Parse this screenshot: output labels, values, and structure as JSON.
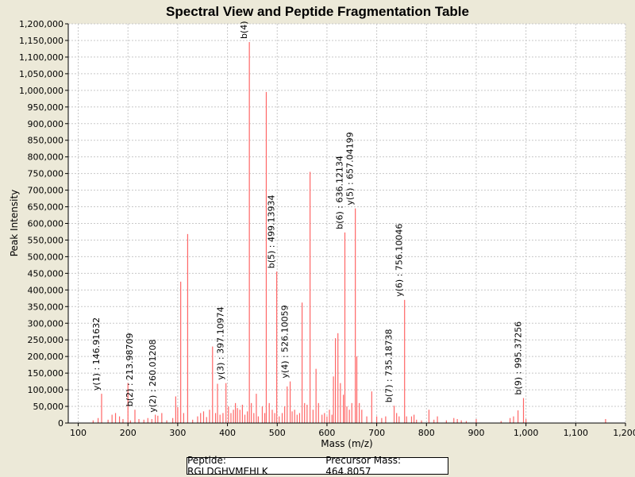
{
  "chart_data": {
    "type": "bar",
    "title": "Spectral View and Peptide Fragmentation Table",
    "xlabel": "Mass (m/z)",
    "ylabel": "Peak Intensity",
    "xlim": [
      80,
      1200
    ],
    "ylim": [
      0,
      1200000
    ],
    "x_ticks": [
      100,
      200,
      300,
      400,
      500,
      600,
      700,
      800,
      900,
      1000,
      1100,
      1200
    ],
    "x_tick_labels": [
      "100",
      "200",
      "300",
      "400",
      "500",
      "600",
      "700",
      "800",
      "900",
      "1,000",
      "1,100",
      "1,200"
    ],
    "y_ticks": [
      0,
      50000,
      100000,
      150000,
      200000,
      250000,
      300000,
      350000,
      400000,
      450000,
      500000,
      550000,
      600000,
      650000,
      700000,
      750000,
      800000,
      850000,
      900000,
      950000,
      1000000,
      1050000,
      1100000,
      1150000,
      1200000
    ],
    "y_tick_labels": [
      "0",
      "50,000",
      "100,000",
      "150,000",
      "200,000",
      "250,000",
      "300,000",
      "350,000",
      "400,000",
      "450,000",
      "500,000",
      "550,000",
      "600,000",
      "650,000",
      "700,000",
      "750,000",
      "800,000",
      "850,000",
      "900,000",
      "950,000",
      "1,000,000",
      "1,050,000",
      "1,100,000",
      "1,150,000",
      "1,200,000"
    ],
    "grid": true,
    "series": [
      {
        "name": "peaks",
        "color": "#ff6666",
        "points": [
          [
            130,
            8000
          ],
          [
            140,
            15000
          ],
          [
            147,
            88000
          ],
          [
            160,
            10000
          ],
          [
            168,
            25000
          ],
          [
            175,
            30000
          ],
          [
            183,
            20000
          ],
          [
            190,
            12000
          ],
          [
            200,
            120000
          ],
          [
            205,
            8000
          ],
          [
            214,
            40000
          ],
          [
            222,
            12000
          ],
          [
            232,
            10000
          ],
          [
            240,
            15000
          ],
          [
            248,
            12000
          ],
          [
            255,
            25000
          ],
          [
            260,
            22000
          ],
          [
            268,
            30000
          ],
          [
            278,
            8000
          ],
          [
            290,
            15000
          ],
          [
            296,
            80000
          ],
          [
            300,
            48000
          ],
          [
            306,
            425000
          ],
          [
            312,
            30000
          ],
          [
            320,
            568000
          ],
          [
            330,
            10000
          ],
          [
            340,
            20000
          ],
          [
            346,
            30000
          ],
          [
            352,
            35000
          ],
          [
            358,
            18000
          ],
          [
            364,
            40000
          ],
          [
            370,
            230000
          ],
          [
            376,
            30000
          ],
          [
            380,
            118000
          ],
          [
            385,
            25000
          ],
          [
            391,
            30000
          ],
          [
            397,
            120000
          ],
          [
            402,
            50000
          ],
          [
            407,
            30000
          ],
          [
            412,
            40000
          ],
          [
            416,
            60000
          ],
          [
            420,
            45000
          ],
          [
            425,
            40000
          ],
          [
            430,
            55000
          ],
          [
            435,
            25000
          ],
          [
            440,
            35000
          ],
          [
            444,
            1145000
          ],
          [
            448,
            60000
          ],
          [
            453,
            30000
          ],
          [
            458,
            88000
          ],
          [
            462,
            20000
          ],
          [
            470,
            50000
          ],
          [
            475,
            30000
          ],
          [
            478,
            995000
          ],
          [
            484,
            60000
          ],
          [
            490,
            40000
          ],
          [
            495,
            30000
          ],
          [
            499,
            455000
          ],
          [
            504,
            20000
          ],
          [
            510,
            30000
          ],
          [
            515,
            50000
          ],
          [
            520,
            110000
          ],
          [
            526,
            125000
          ],
          [
            530,
            35000
          ],
          [
            535,
            40000
          ],
          [
            540,
            25000
          ],
          [
            545,
            30000
          ],
          [
            550,
            362000
          ],
          [
            555,
            60000
          ],
          [
            560,
            55000
          ],
          [
            566,
            755000
          ],
          [
            572,
            40000
          ],
          [
            578,
            163000
          ],
          [
            583,
            60000
          ],
          [
            590,
            25000
          ],
          [
            595,
            30000
          ],
          [
            600,
            20000
          ],
          [
            605,
            40000
          ],
          [
            610,
            25000
          ],
          [
            613,
            140000
          ],
          [
            617,
            255000
          ],
          [
            622,
            270000
          ],
          [
            627,
            120000
          ],
          [
            633,
            85000
          ],
          [
            636,
            573000
          ],
          [
            640,
            50000
          ],
          [
            645,
            40000
          ],
          [
            650,
            60000
          ],
          [
            657,
            645000
          ],
          [
            660,
            200000
          ],
          [
            665,
            60000
          ],
          [
            670,
            40000
          ],
          [
            680,
            20000
          ],
          [
            690,
            95000
          ],
          [
            700,
            20000
          ],
          [
            710,
            15000
          ],
          [
            718,
            20000
          ],
          [
            735,
            52000
          ],
          [
            740,
            30000
          ],
          [
            745,
            20000
          ],
          [
            756,
            370000
          ],
          [
            760,
            20000
          ],
          [
            770,
            20000
          ],
          [
            775,
            25000
          ],
          [
            780,
            10000
          ],
          [
            790,
            8000
          ],
          [
            805,
            40000
          ],
          [
            815,
            10000
          ],
          [
            822,
            20000
          ],
          [
            840,
            8000
          ],
          [
            855,
            15000
          ],
          [
            862,
            12000
          ],
          [
            870,
            8000
          ],
          [
            880,
            6000
          ],
          [
            900,
            12000
          ],
          [
            950,
            6000
          ],
          [
            968,
            15000
          ],
          [
            975,
            20000
          ],
          [
            984,
            38000
          ],
          [
            995,
            75000
          ],
          [
            1000,
            12000
          ],
          [
            1160,
            12000
          ]
        ]
      }
    ],
    "annotations": [
      {
        "label": "y(1) : 146.91632",
        "x": 147,
        "y": 88000
      },
      {
        "label": "b(2) : 213.98709",
        "x": 214,
        "y": 40000
      },
      {
        "label": "y(2) : 260.01208",
        "x": 260,
        "y": 22000
      },
      {
        "label": "y(3) : 397.10974",
        "x": 397,
        "y": 120000
      },
      {
        "label": "b(4)",
        "x": 444,
        "y": 1145000
      },
      {
        "label": "b(5) : 499.13934",
        "x": 499,
        "y": 455000
      },
      {
        "label": "y(4) : 526.10059",
        "x": 526,
        "y": 125000
      },
      {
        "label": "b(6) : 636.12134",
        "x": 636,
        "y": 573000
      },
      {
        "label": "y(5) : 657.04199",
        "x": 657,
        "y": 645000
      },
      {
        "label": "b(7) : 735.18738",
        "x": 735,
        "y": 52000
      },
      {
        "label": "y(6) : 756.10046",
        "x": 756,
        "y": 370000
      },
      {
        "label": "b(9) : 995.37256",
        "x": 995,
        "y": 75000
      }
    ]
  },
  "legend": {
    "peptide": "Peptide: RGLDGHVMEHLK",
    "precursor": "Precursor Mass: 464.8057"
  },
  "colors": {
    "background": "#ECE9D8",
    "plot_background": "#ffffff",
    "grid": "#c8c8c8",
    "peak": "#ff6666"
  }
}
